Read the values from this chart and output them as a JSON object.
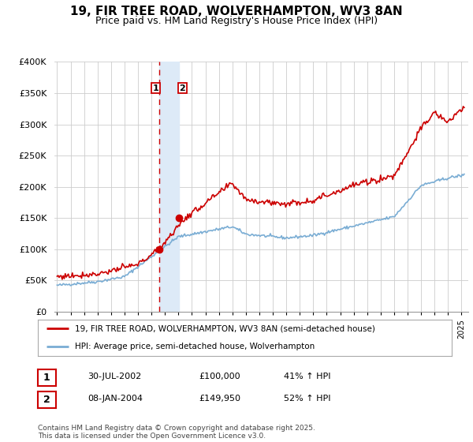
{
  "title": "19, FIR TREE ROAD, WOLVERHAMPTON, WV3 8AN",
  "subtitle": "Price paid vs. HM Land Registry's House Price Index (HPI)",
  "title_fontsize": 11,
  "subtitle_fontsize": 9,
  "background_color": "#ffffff",
  "plot_bg_color": "#ffffff",
  "grid_color": "#cccccc",
  "sale1_date": 2002.58,
  "sale1_price": 100000,
  "sale2_date": 2004.03,
  "sale2_price": 149950,
  "hpi_line_color": "#7aadd4",
  "property_line_color": "#cc0000",
  "sale_marker_color": "#cc0000",
  "shaded_region_color": "#ddeaf7",
  "dashed_line_color": "#cc0000",
  "legend_property": "19, FIR TREE ROAD, WOLVERHAMPTON, WV3 8AN (semi-detached house)",
  "legend_hpi": "HPI: Average price, semi-detached house, Wolverhampton",
  "table_row1": [
    "1",
    "30-JUL-2002",
    "£100,000",
    "41% ↑ HPI"
  ],
  "table_row2": [
    "2",
    "08-JAN-2004",
    "£149,950",
    "52% ↑ HPI"
  ],
  "footer": "Contains HM Land Registry data © Crown copyright and database right 2025.\nThis data is licensed under the Open Government Licence v3.0.",
  "ylim": [
    0,
    400000
  ],
  "xlim_start": 1994.8,
  "xlim_end": 2025.5,
  "yticks": [
    0,
    50000,
    100000,
    150000,
    200000,
    250000,
    300000,
    350000,
    400000
  ],
  "ytick_labels": [
    "£0",
    "£50K",
    "£100K",
    "£150K",
    "£200K",
    "£250K",
    "£300K",
    "£350K",
    "£400K"
  ]
}
